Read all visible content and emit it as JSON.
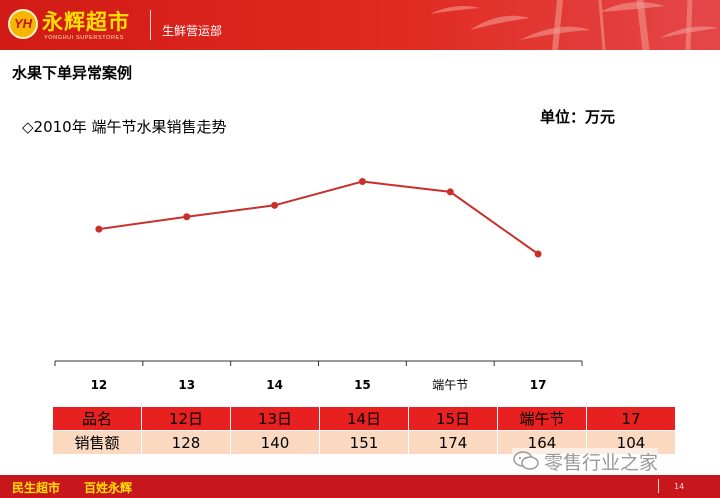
{
  "header": {
    "logo_mark": "YH",
    "brand_name": "永辉超市",
    "brand_sub": "YONGHUI SUPERSTORES",
    "department": "生鲜营运部"
  },
  "page_title": "水果下单异常案例",
  "chart_title": "◇2010年 端午节水果销售走势",
  "unit_label": "单位：万元",
  "chart_data": {
    "type": "line",
    "categories": [
      "12",
      "13",
      "14",
      "15",
      "端午节",
      "17"
    ],
    "series": [
      {
        "values": [
          128,
          140,
          151,
          174,
          164,
          104
        ]
      }
    ],
    "title": "2010年 端午节水果销售走势",
    "unit": "万元",
    "line_color": "#c9302c",
    "grid": false
  },
  "table": {
    "rows": [
      {
        "label": "品名",
        "cells": [
          "12日",
          "13日",
          "14日",
          "15日",
          "端午节",
          "17"
        ]
      },
      {
        "label": "销售额",
        "cells": [
          "128",
          "140",
          "151",
          "174",
          "164",
          "104"
        ]
      }
    ]
  },
  "footer": {
    "slogan_left": "民生超市",
    "slogan_right": "百姓永辉",
    "page_number": "14"
  },
  "watermark": {
    "text": "零售行业之家",
    "icon": "wechat-icon"
  },
  "colors": {
    "brand_red": "#d21a16",
    "brand_yellow": "#ffe100",
    "table_head": "#e8201f",
    "table_values": "#fbd9c1"
  }
}
